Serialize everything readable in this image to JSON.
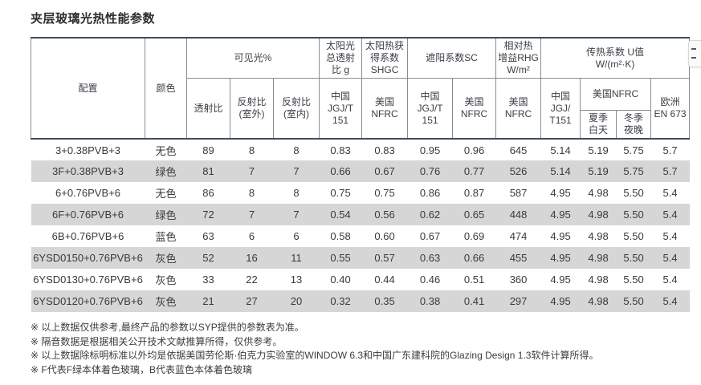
{
  "title": "夹层玻璃光热性能参数",
  "colors": {
    "dark_border": "#3d4d5c",
    "grid_border": "#868d94",
    "alt_row_bg": "#d6d6d6",
    "text": "#3a3a3a"
  },
  "side_widget": {
    "icon": "menu-dashes-icon"
  },
  "table": {
    "headers": {
      "config": "配置",
      "color": "颜色",
      "visible_light": "可见光%",
      "solar_transmittance_g": "太阳光\n总透射\n比 g",
      "shgc": "太阳热获\n得系数\nSHGC",
      "shading_coefficient": "遮阳系数SC",
      "relative_heat_gain": "相对热\n增益RHG\nW/m²",
      "u_value": "传热系数 U值\nW/(m²·K)",
      "transmittance": "透射比",
      "reflectance_outdoor": "反射比\n(室外)",
      "reflectance_indoor": "反射比\n(室内)",
      "china_jgjt151": "中国\nJGJ/T\n151",
      "us_nfrc": "美国\nNFRC",
      "china_jgjt151_u": "中国\nJGJ/\nT151",
      "us_nfrc_u": "美国NFRC",
      "summer_day": "夏季\n白天",
      "winter_night": "冬季\n夜晚",
      "europe_en673": "欧洲\nEN 673"
    },
    "rows": [
      [
        "3+0.38PVB+3",
        "无色",
        "89",
        "8",
        "8",
        "0.83",
        "0.83",
        "0.95",
        "0.96",
        "645",
        "5.14",
        "5.19",
        "5.75",
        "5.7"
      ],
      [
        "3F+0.38PVB+3",
        "绿色",
        "81",
        "7",
        "7",
        "0.66",
        "0.67",
        "0.76",
        "0.77",
        "526",
        "5.14",
        "5.19",
        "5.75",
        "5.7"
      ],
      [
        "6+0.76PVB+6",
        "无色",
        "86",
        "8",
        "8",
        "0.75",
        "0.75",
        "0.86",
        "0.87",
        "587",
        "4.95",
        "4.98",
        "5.50",
        "5.4"
      ],
      [
        "6F+0.76PVB+6",
        "绿色",
        "72",
        "7",
        "7",
        "0.54",
        "0.56",
        "0.62",
        "0.65",
        "448",
        "4.95",
        "4.98",
        "5.50",
        "5.4"
      ],
      [
        "6B+0.76PVB+6",
        "蓝色",
        "63",
        "6",
        "6",
        "0.58",
        "0.60",
        "0.67",
        "0.69",
        "474",
        "4.95",
        "4.98",
        "5.50",
        "5.4"
      ],
      [
        "6YSD0150+0.76PVB+6",
        "灰色",
        "52",
        "16",
        "11",
        "0.55",
        "0.57",
        "0.63",
        "0.66",
        "455",
        "4.95",
        "4.98",
        "5.50",
        "5.4"
      ],
      [
        "6YSD0130+0.76PVB+6",
        "灰色",
        "33",
        "22",
        "13",
        "0.40",
        "0.44",
        "0.46",
        "0.51",
        "360",
        "4.95",
        "4.98",
        "5.50",
        "5.4"
      ],
      [
        "6YSD0120+0.76PVB+6",
        "灰色",
        "21",
        "27",
        "20",
        "0.32",
        "0.35",
        "0.38",
        "0.41",
        "297",
        "4.95",
        "4.98",
        "5.50",
        "5.4"
      ]
    ]
  },
  "footnotes": [
    "※ 以上数据仅供参考,最终产品的参数以SYP提供的参数表为准。",
    "※ 隔音数据是根据相关公开技术文献推算所得，仅供参考。",
    "※ 以上数据除标明标准以外均是依据美国劳伦斯·伯克力实验室的WINDOW 6.3和中国广东建科院的Glazing Design 1.3软件计算所得。",
    "※ F代表F绿本体着色玻璃，B代表蓝色本体着色玻璃"
  ]
}
